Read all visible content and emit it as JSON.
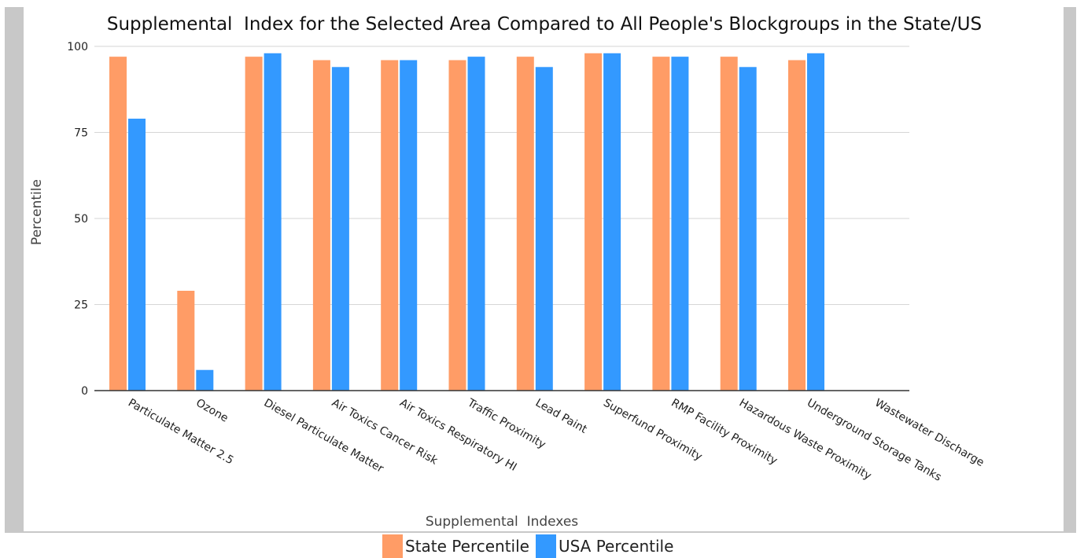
{
  "chart_data": {
    "type": "bar",
    "title": "Supplemental  Index for the Selected Area Compared to All People's Blockgroups in the State/US",
    "xlabel": "Supplemental  Indexes",
    "ylabel": "Percentile",
    "ylim": [
      0,
      100
    ],
    "yticks": [
      0,
      25,
      50,
      75,
      100
    ],
    "grid": true,
    "legend_position": "bottom-center",
    "categories": [
      "Particulate Matter 2.5",
      "Ozone",
      "Diesel Particulate Matter",
      "Air Toxics Cancer Risk",
      "Air Toxics Respiratory HI",
      "Traffic Proximity",
      "Lead Paint",
      "Superfund Proximity",
      "RMP Facility Proximity",
      "Hazardous Waste Proximity",
      "Underground Storage Tanks",
      "Wastewater Discharge"
    ],
    "series": [
      {
        "name": "State Percentile",
        "color": "#ff9c66",
        "values": [
          97,
          29,
          97,
          96,
          96,
          96,
          97,
          98,
          97,
          97,
          96,
          null
        ]
      },
      {
        "name": "USA Percentile",
        "color": "#3399ff",
        "values": [
          79,
          6,
          98,
          94,
          96,
          97,
          94,
          98,
          97,
          94,
          98,
          null
        ]
      }
    ]
  },
  "legend": {
    "items": [
      {
        "label": "State Percentile",
        "color": "#ff9c66"
      },
      {
        "label": "USA Percentile",
        "color": "#3399ff"
      }
    ]
  }
}
